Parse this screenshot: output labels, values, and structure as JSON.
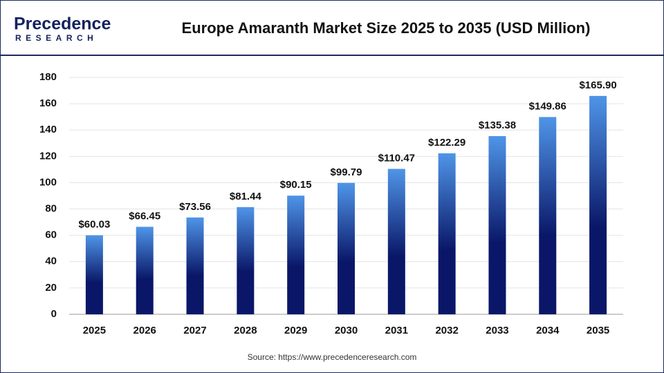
{
  "logo": {
    "name": "Precedence",
    "tagline": "RESEARCH"
  },
  "chart_data": {
    "type": "bar",
    "title": "Europe Amaranth Market Size 2025 to 2035 (USD Million)",
    "source": "Source: https://www.precedenceresearch.com",
    "categories": [
      "2025",
      "2026",
      "2027",
      "2028",
      "2029",
      "2030",
      "2031",
      "2032",
      "2033",
      "2034",
      "2035"
    ],
    "values": [
      60.03,
      66.45,
      73.56,
      81.44,
      90.15,
      99.79,
      110.47,
      122.29,
      135.38,
      149.86,
      165.9
    ],
    "value_labels": [
      "$60.03",
      "$66.45",
      "$73.56",
      "$81.44",
      "$90.15",
      "$99.79",
      "$110.47",
      "$122.29",
      "$135.38",
      "$149.86",
      "$165.90"
    ],
    "gradient": [
      "#4f95e8",
      "#0a1768"
    ],
    "ylim": [
      0,
      180
    ],
    "yticks": [
      0,
      20,
      40,
      60,
      80,
      100,
      120,
      140,
      160,
      180
    ],
    "grid": true
  }
}
